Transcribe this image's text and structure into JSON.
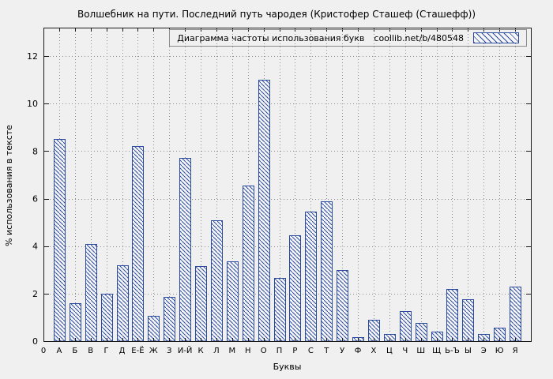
{
  "chart_data": {
    "type": "bar",
    "title": "Волшебник на пути. Последний путь чародея (Кристофер Сташеф (Сташефф))",
    "legend_label": "Диаграмма частоты использования букв",
    "legend_url": "coollib.net/b/480548",
    "legend_position": "top-right-inside",
    "xlabel": "Буквы",
    "ylabel": "% использования в тексте",
    "origin_label": "0",
    "categories": [
      "А",
      "Б",
      "В",
      "Г",
      "Д",
      "Е-Ё",
      "Ж",
      "З",
      "И-Й",
      "К",
      "Л",
      "М",
      "Н",
      "О",
      "П",
      "Р",
      "С",
      "Т",
      "У",
      "Ф",
      "Х",
      "Ц",
      "Ч",
      "Ш",
      "Щ",
      "Ь-Ъ",
      "Ы",
      "Э",
      "Ю",
      "Я"
    ],
    "values": [
      8.5,
      1.6,
      4.1,
      2.0,
      3.2,
      8.2,
      1.05,
      1.85,
      7.7,
      3.15,
      5.1,
      3.35,
      6.55,
      11.0,
      2.65,
      4.45,
      5.45,
      5.9,
      3.0,
      0.15,
      0.9,
      0.3,
      1.25,
      0.75,
      0.4,
      2.2,
      1.75,
      0.3,
      0.55,
      2.3
    ],
    "yticks": [
      0,
      2,
      4,
      6,
      8,
      10,
      12
    ],
    "ylim": [
      0,
      13.2
    ],
    "grid": true,
    "colors": {
      "bar": "#2a4a9e",
      "hatch_bg": "#f6f6f6",
      "text": "#000000",
      "grid": "#8c8c8c",
      "axis": "#1a1a1a",
      "page_bg": "#f0f0f0"
    }
  }
}
